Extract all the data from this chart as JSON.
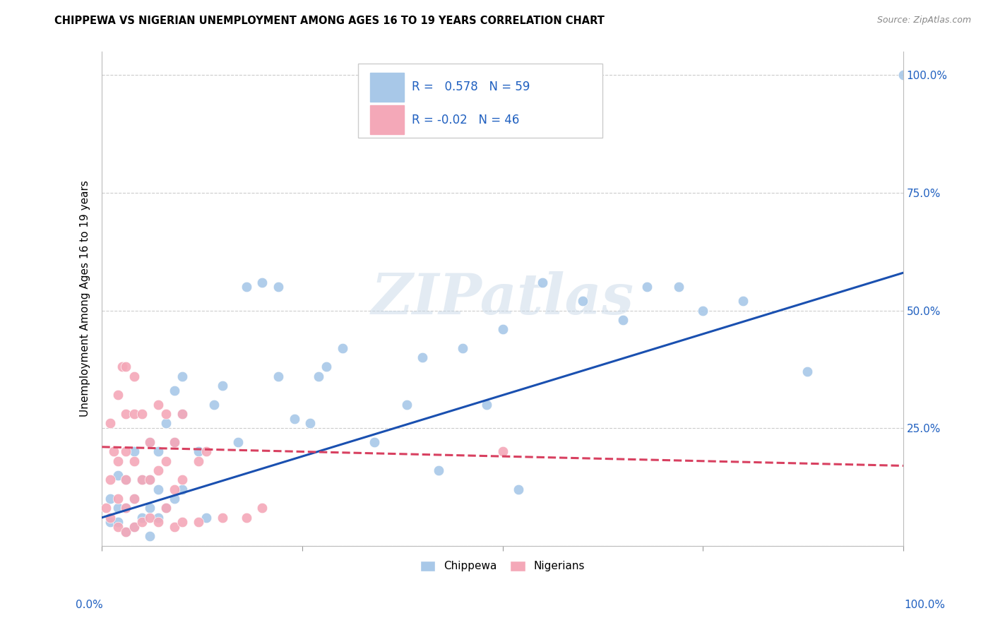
{
  "title": "CHIPPEWA VS NIGERIAN UNEMPLOYMENT AMONG AGES 16 TO 19 YEARS CORRELATION CHART",
  "source": "Source: ZipAtlas.com",
  "ylabel": "Unemployment Among Ages 16 to 19 years",
  "xlim": [
    0.0,
    1.0
  ],
  "ylim": [
    0.0,
    1.05
  ],
  "xticks": [
    0.0,
    0.25,
    0.5,
    0.75,
    1.0
  ],
  "xticklabels_left": "0.0%",
  "xticklabels_right": "100.0%",
  "yticks": [
    0.0,
    0.25,
    0.5,
    0.75,
    1.0
  ],
  "right_yticklabels": [
    "",
    "25.0%",
    "50.0%",
    "75.0%",
    "100.0%"
  ],
  "chippewa_color": "#a8c8e8",
  "nigerian_color": "#f4a8b8",
  "chippewa_line_color": "#1a50b0",
  "nigerian_line_color": "#d84060",
  "background_color": "#ffffff",
  "grid_color": "#cccccc",
  "legend_text_color": "#2060c0",
  "chippewa_R": 0.578,
  "chippewa_N": 59,
  "nigerian_R": -0.02,
  "nigerian_N": 46,
  "watermark": "ZIPatlas",
  "chippewa_scatter_x": [
    0.01,
    0.01,
    0.02,
    0.02,
    0.02,
    0.03,
    0.03,
    0.03,
    0.04,
    0.04,
    0.04,
    0.05,
    0.05,
    0.06,
    0.06,
    0.06,
    0.06,
    0.07,
    0.07,
    0.07,
    0.08,
    0.08,
    0.09,
    0.09,
    0.09,
    0.1,
    0.1,
    0.1,
    0.12,
    0.13,
    0.14,
    0.15,
    0.17,
    0.18,
    0.2,
    0.22,
    0.22,
    0.24,
    0.26,
    0.27,
    0.28,
    0.3,
    0.34,
    0.38,
    0.4,
    0.42,
    0.45,
    0.48,
    0.5,
    0.52,
    0.55,
    0.6,
    0.65,
    0.68,
    0.72,
    0.75,
    0.8,
    0.88,
    1.0
  ],
  "chippewa_scatter_y": [
    0.05,
    0.1,
    0.05,
    0.08,
    0.15,
    0.03,
    0.08,
    0.14,
    0.04,
    0.1,
    0.2,
    0.06,
    0.14,
    0.02,
    0.08,
    0.14,
    0.22,
    0.06,
    0.12,
    0.2,
    0.08,
    0.26,
    0.1,
    0.22,
    0.33,
    0.12,
    0.28,
    0.36,
    0.2,
    0.06,
    0.3,
    0.34,
    0.22,
    0.55,
    0.56,
    0.36,
    0.55,
    0.27,
    0.26,
    0.36,
    0.38,
    0.42,
    0.22,
    0.3,
    0.4,
    0.16,
    0.42,
    0.3,
    0.46,
    0.12,
    0.56,
    0.52,
    0.48,
    0.55,
    0.55,
    0.5,
    0.52,
    0.37,
    1.0
  ],
  "nigerian_scatter_x": [
    0.005,
    0.01,
    0.01,
    0.01,
    0.015,
    0.02,
    0.02,
    0.02,
    0.02,
    0.025,
    0.03,
    0.03,
    0.03,
    0.03,
    0.03,
    0.03,
    0.04,
    0.04,
    0.04,
    0.04,
    0.04,
    0.05,
    0.05,
    0.05,
    0.06,
    0.06,
    0.06,
    0.07,
    0.07,
    0.07,
    0.08,
    0.08,
    0.08,
    0.09,
    0.09,
    0.09,
    0.1,
    0.1,
    0.1,
    0.12,
    0.12,
    0.13,
    0.15,
    0.18,
    0.2,
    0.5
  ],
  "nigerian_scatter_y": [
    0.08,
    0.06,
    0.14,
    0.26,
    0.2,
    0.04,
    0.1,
    0.18,
    0.32,
    0.38,
    0.03,
    0.08,
    0.14,
    0.2,
    0.28,
    0.38,
    0.04,
    0.1,
    0.18,
    0.28,
    0.36,
    0.05,
    0.14,
    0.28,
    0.06,
    0.14,
    0.22,
    0.05,
    0.16,
    0.3,
    0.08,
    0.18,
    0.28,
    0.04,
    0.12,
    0.22,
    0.05,
    0.14,
    0.28,
    0.05,
    0.18,
    0.2,
    0.06,
    0.06,
    0.08,
    0.2
  ],
  "chippewa_line_x": [
    0.0,
    1.0
  ],
  "chippewa_line_y": [
    0.06,
    0.58
  ],
  "nigerian_line_x": [
    0.0,
    1.0
  ],
  "nigerian_line_y": [
    0.21,
    0.17
  ]
}
